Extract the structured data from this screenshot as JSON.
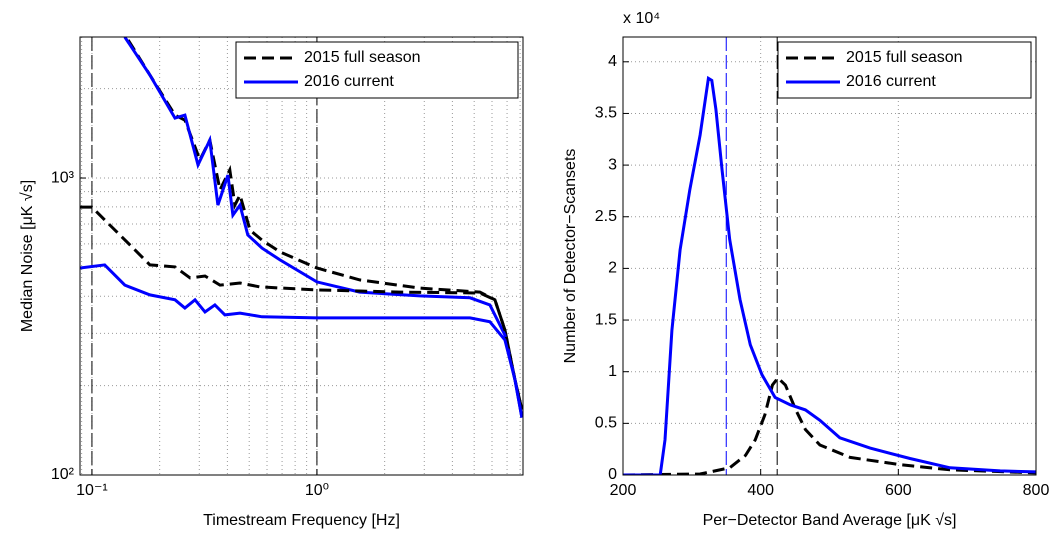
{
  "chart_data": [
    {
      "type": "line",
      "xlabel": "Timestream Frequency [Hz]",
      "ylabel": "Median Noise [μK √s]",
      "xscale": "log",
      "yscale": "log",
      "grid": true,
      "minor_grid": true,
      "legend": "upper right",
      "xlim": [
        0.0885,
        8.24
      ],
      "ylim": [
        100,
        2985
      ],
      "xticks": [
        {
          "value": 0.1,
          "label": "10⁻¹"
        },
        {
          "value": 1,
          "label": "10⁰"
        }
      ],
      "yticks": [
        {
          "value": 100,
          "label": "10²"
        },
        {
          "value": 1000,
          "label": "10³"
        }
      ],
      "vlines": [
        {
          "x": 0.1,
          "color": "#000000"
        },
        {
          "x": 1,
          "color": "#000000"
        }
      ],
      "series": [
        {
          "name": "2015 full season",
          "color": "#000000",
          "dashed": true,
          "x": [
            0.145,
            0.181,
            0.234,
            0.259,
            0.302,
            0.334,
            0.371,
            0.41,
            0.432,
            0.455,
            0.504,
            0.57,
            0.685,
            1,
            1.55,
            2.87,
            5.3,
            6.18,
            6.85,
            7.59,
            8.15
          ],
          "values": [
            2917,
            2223,
            1629,
            1567,
            1151,
            1342,
            912,
            1065,
            811,
            877,
            668,
            618,
            564,
            498,
            454,
            426,
            413,
            389,
            308,
            209,
            166
          ]
        },
        {
          "name": "2016 current",
          "color": "#0000ff",
          "dashed": false,
          "x": [
            0.14,
            0.181,
            0.234,
            0.259,
            0.296,
            0.334,
            0.363,
            0.402,
            0.423,
            0.455,
            0.493,
            0.57,
            0.685,
            1,
            1.55,
            2.87,
            4.79,
            5.87,
            6.85,
            7.59,
            8.15
          ],
          "values": [
            2985,
            2223,
            1592,
            1629,
            1107,
            1342,
            811,
            1023,
            750,
            811,
            643,
            581,
            530,
            447,
            413,
            401,
            395,
            374,
            296,
            209,
            156
          ]
        },
        {
          "color": "#000000",
          "dashed": true,
          "x": [
            0.0885,
            0.1,
            0.12,
            0.148,
            0.181,
            0.234,
            0.273,
            0.318,
            0.371,
            0.455,
            0.558,
            1,
            2.34,
            5.3,
            6.18,
            6.85,
            7.59,
            8.15
          ],
          "values": [
            798,
            798,
            695,
            594,
            510,
            502,
            461,
            468,
            436,
            443,
            430,
            420,
            413,
            410,
            389,
            308,
            209,
            166
          ]
        },
        {
          "color": "#0000ff",
          "dashed": false,
          "x": [
            0.0885,
            0.114,
            0.14,
            0.181,
            0.234,
            0.259,
            0.287,
            0.318,
            0.352,
            0.39,
            0.455,
            0.57,
            1,
            2.34,
            4.79,
            5.87,
            6.85,
            7.59,
            8.15
          ],
          "values": [
            498,
            510,
            436,
            404,
            389,
            365,
            389,
            354,
            374,
            346,
            351,
            341,
            338,
            338,
            338,
            328,
            285,
            209,
            156
          ]
        }
      ]
    },
    {
      "type": "line",
      "xlabel": "Per−Detector Band Average [μK √s]",
      "ylabel": "Number of Detector−Scansets",
      "multiplier": "x 10⁴",
      "grid": true,
      "legend": "upper right",
      "xlim": [
        200,
        800
      ],
      "ylim": [
        0,
        4.24
      ],
      "xticks": [
        200,
        400,
        600,
        800
      ],
      "yticks": [
        0,
        0.5,
        1,
        1.5,
        2,
        2.5,
        3,
        3.5,
        4
      ],
      "vlines": [
        {
          "x": 350,
          "color": "#0000ff"
        },
        {
          "x": 424,
          "color": "#000000"
        }
      ],
      "series": [
        {
          "name": "2015 full season",
          "color": "#000000",
          "dashed": true,
          "x": [
            200,
            312,
            355,
            378,
            392,
            406,
            417,
            425,
            436,
            451,
            465,
            486,
            530,
            603,
            675,
            800
          ],
          "values": [
            0,
            0.01,
            0.07,
            0.19,
            0.34,
            0.58,
            0.87,
            0.94,
            0.87,
            0.63,
            0.44,
            0.29,
            0.17,
            0.1,
            0.05,
            0.02
          ]
        },
        {
          "name": "2016 current",
          "color": "#0000ff",
          "dashed": false,
          "x": [
            200,
            254,
            261,
            271,
            283,
            297,
            312,
            324,
            329,
            335,
            344,
            355,
            370,
            385,
            402,
            421,
            443,
            465,
            486,
            515,
            559,
            617,
            675,
            748,
            800
          ],
          "values": [
            0,
            0,
            0.34,
            1.4,
            2.18,
            2.76,
            3.29,
            3.84,
            3.82,
            3.54,
            2.95,
            2.28,
            1.7,
            1.26,
            0.97,
            0.75,
            0.68,
            0.63,
            0.53,
            0.36,
            0.26,
            0.16,
            0.07,
            0.04,
            0.03
          ]
        }
      ]
    }
  ]
}
